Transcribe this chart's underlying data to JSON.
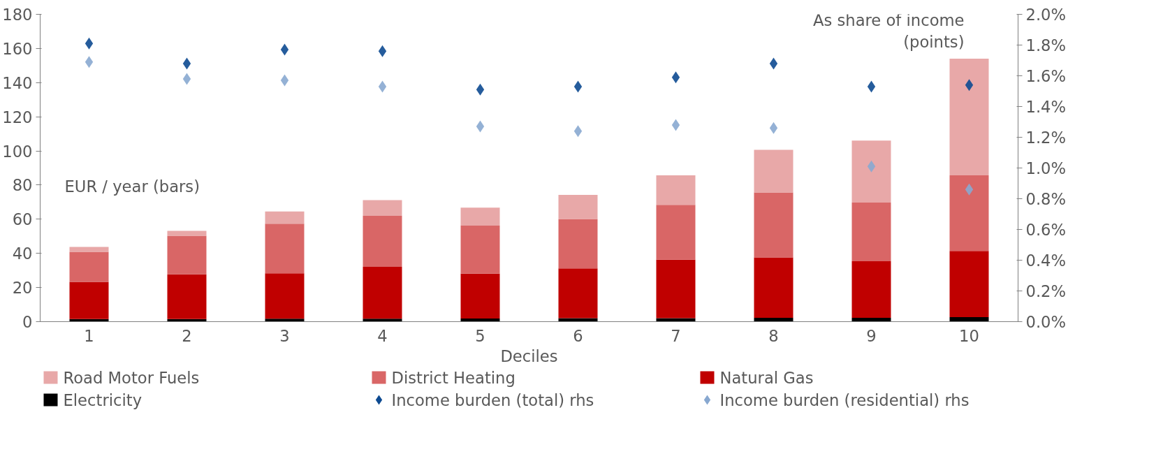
{
  "chart_data": {
    "type": "bar",
    "stacked": true,
    "xlabel": "Deciles",
    "categories": [
      "1",
      "2",
      "3",
      "4",
      "5",
      "6",
      "7",
      "8",
      "9",
      "10"
    ],
    "ylim": [
      0,
      180
    ],
    "yticks": [
      0,
      20,
      40,
      60,
      80,
      100,
      120,
      140,
      160,
      180
    ],
    "y2lim": [
      0,
      2
    ],
    "y2ticks": [
      {
        "value": 0,
        "label": "0.0%"
      },
      {
        "value": 0.2,
        "label": "0.2%"
      },
      {
        "value": 0.4,
        "label": "0.4%"
      },
      {
        "value": 0.6,
        "label": "0.6%"
      },
      {
        "value": 0.8,
        "label": "0.8%"
      },
      {
        "value": 1.0,
        "label": "1.0%"
      },
      {
        "value": 1.2,
        "label": "1.2%"
      },
      {
        "value": 1.4,
        "label": "1.4%"
      },
      {
        "value": 1.6,
        "label": "1.6%"
      },
      {
        "value": 1.8,
        "label": "1.8%"
      },
      {
        "value": 2.0,
        "label": "2.0%"
      }
    ],
    "series": [
      {
        "name": "Electricity",
        "color": "#000000",
        "values": [
          1.5,
          1.5,
          1.7,
          1.7,
          1.8,
          2,
          2,
          2.2,
          2.2,
          2.7
        ]
      },
      {
        "name": "Natural Gas",
        "color": "#c00000",
        "values": [
          21.8,
          26.2,
          26.6,
          30.4,
          26.3,
          29.2,
          34.3,
          35.4,
          33.2,
          38.7
        ]
      },
      {
        "name": "District Heating",
        "color": "#d96666",
        "values": [
          17.6,
          22.6,
          29.1,
          29.9,
          28.1,
          28.9,
          32.1,
          38.1,
          34.4,
          44.3
        ]
      },
      {
        "name": "Road Motor Fuels",
        "color": "#e8a8a8",
        "values": [
          2.9,
          2.9,
          7.1,
          9.2,
          10.6,
          14.2,
          17.3,
          24.9,
          36.3,
          68.3
        ]
      },
      {
        "name": "Income burden (total) rhs",
        "type": "scatter",
        "axis": "y2",
        "color": "#0d4a91",
        "values": [
          1.81,
          1.68,
          1.77,
          1.76,
          1.51,
          1.53,
          1.59,
          1.68,
          1.53,
          1.54
        ]
      },
      {
        "name": "Income burden (residential) rhs",
        "type": "scatter",
        "axis": "y2",
        "color": "#88a8d0",
        "values": [
          1.69,
          1.58,
          1.57,
          1.53,
          1.27,
          1.24,
          1.28,
          1.26,
          1.01,
          0.86
        ]
      }
    ],
    "marker": "diamond",
    "grid": false,
    "legend": "bottom",
    "annotations": [
      "EUR / year (bars)",
      "As share of income\n(points)"
    ]
  }
}
